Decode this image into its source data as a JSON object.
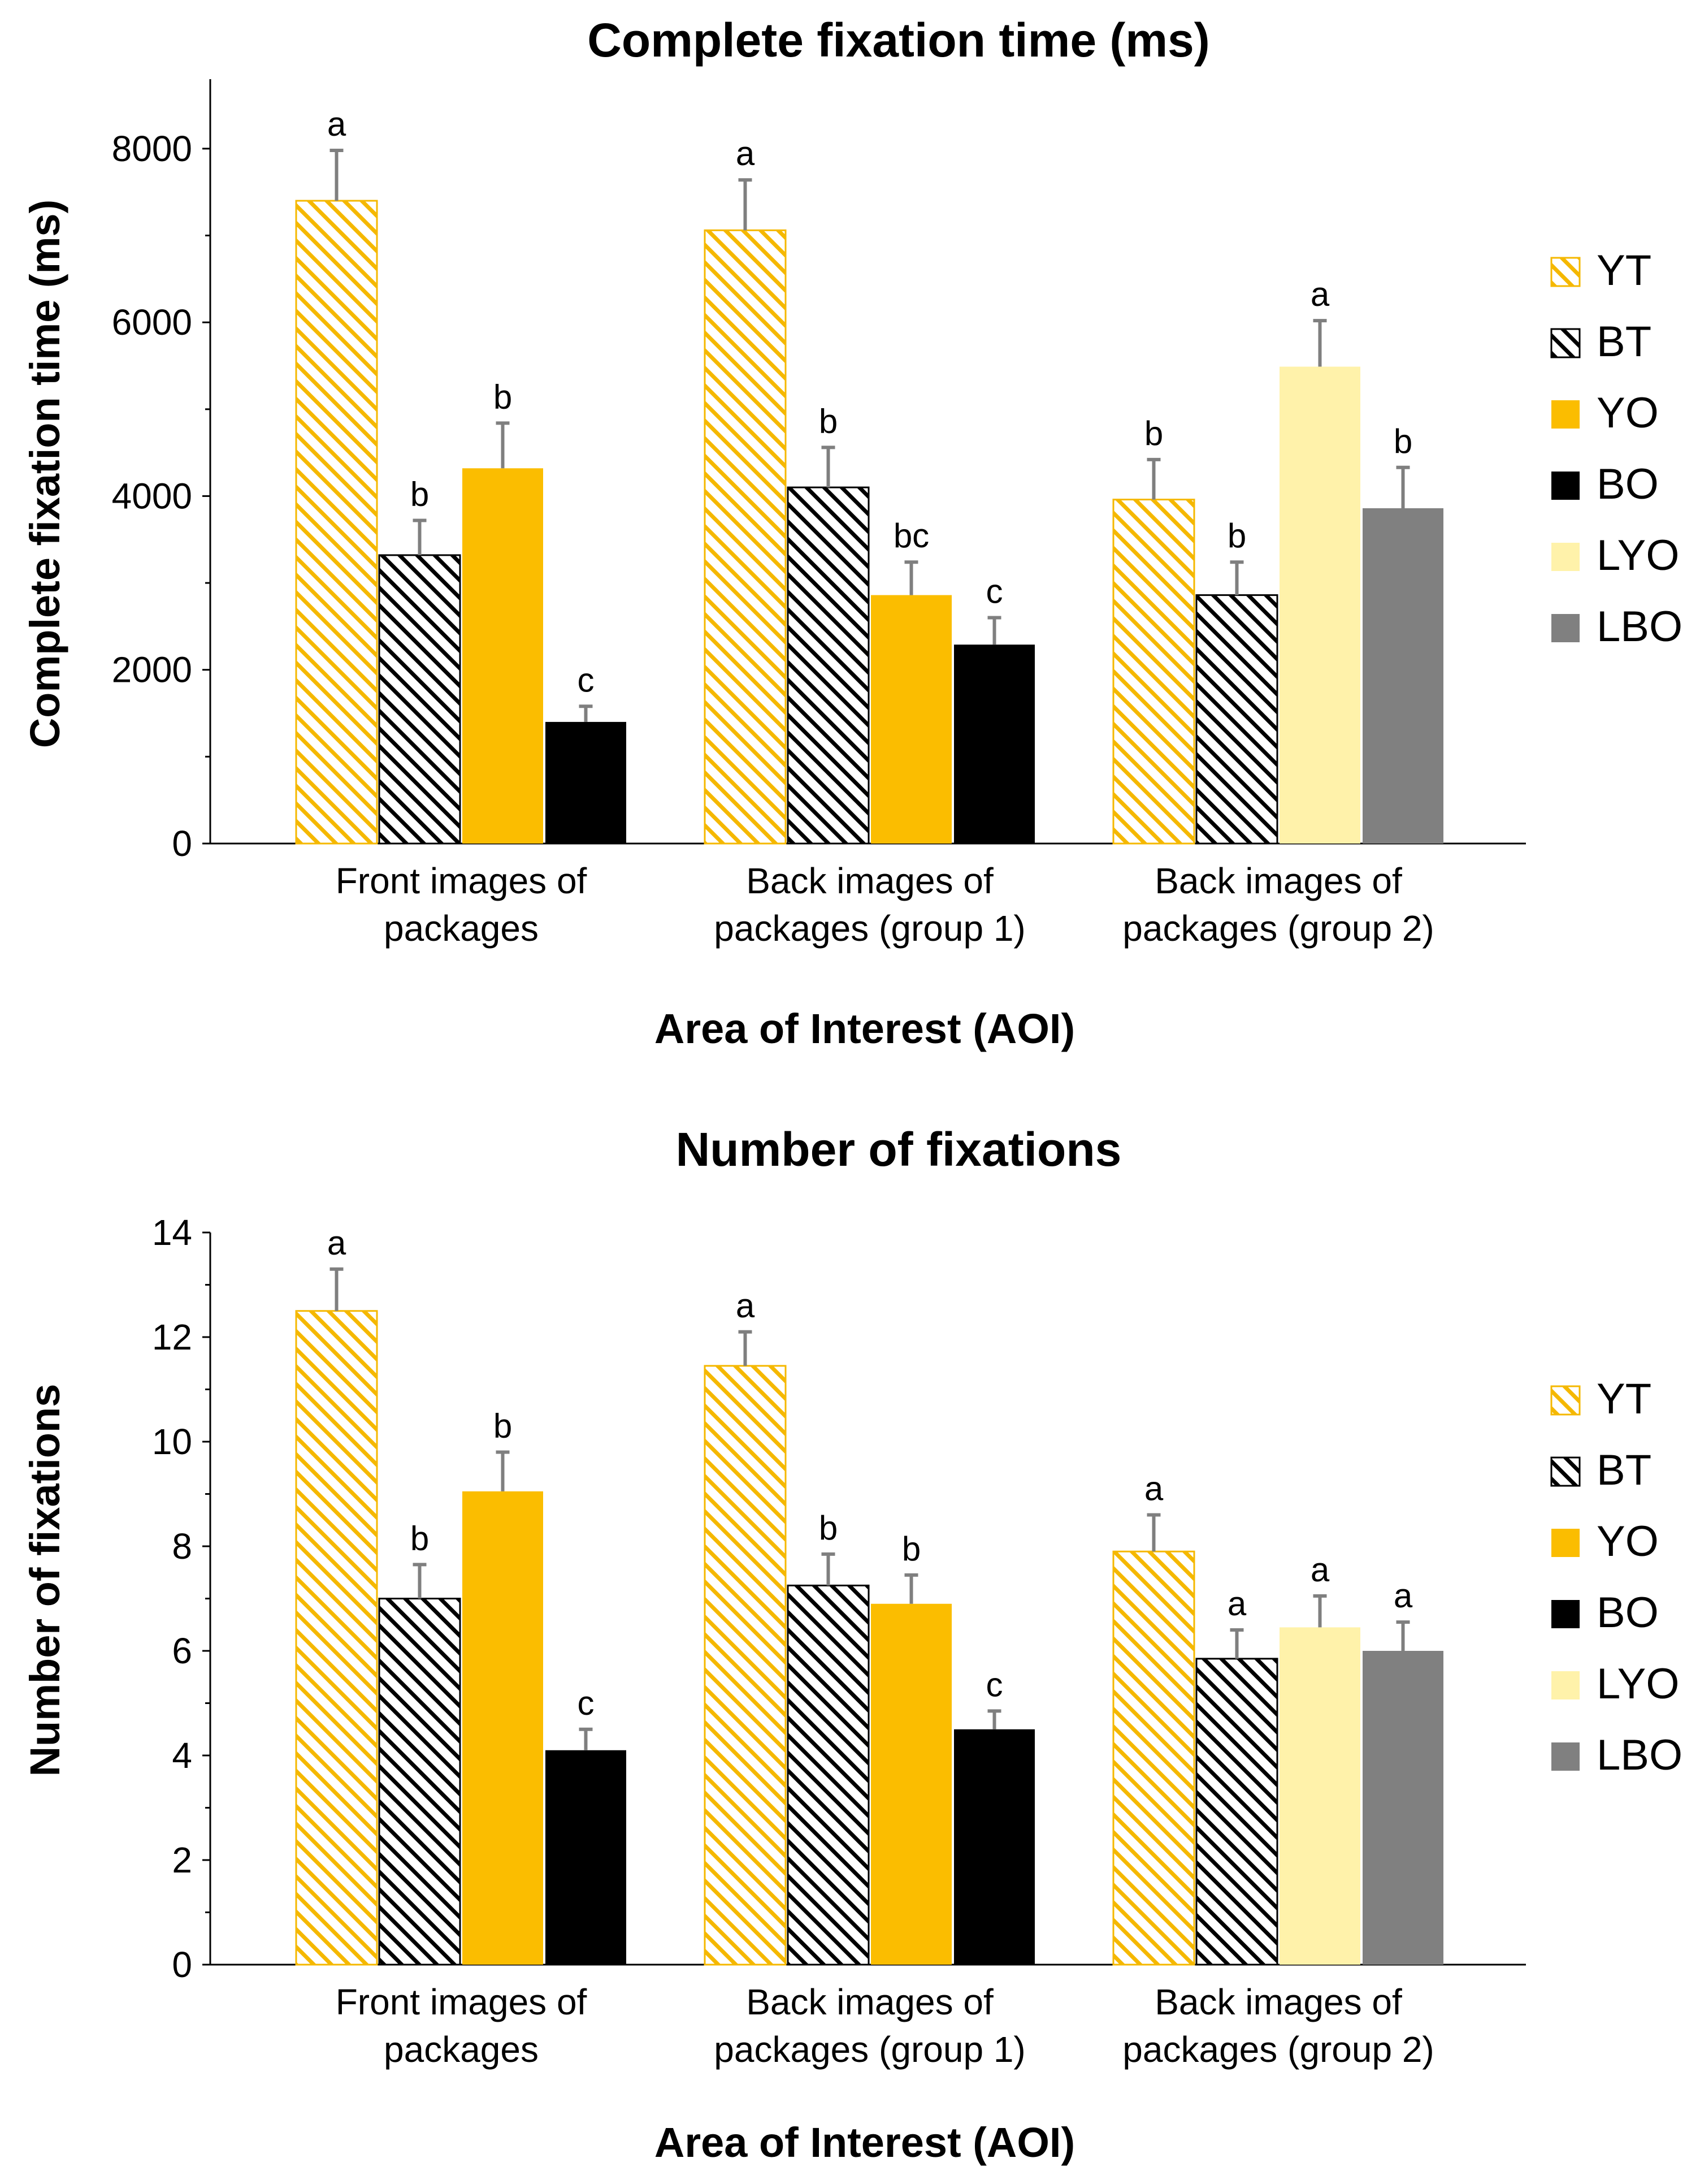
{
  "chart_data": [
    {
      "type": "bar",
      "title": "Complete fixation time (ms)",
      "xlabel": "Area of Interest (AOI)",
      "ylabel": "Complete fixation time (ms)",
      "ylim": [
        0,
        8800
      ],
      "yticks": [
        "0",
        "2000",
        "4000",
        "6000",
        "8000"
      ],
      "ytick_values": [
        0,
        2000,
        4000,
        6000,
        8000
      ],
      "categories": [
        [
          "Front images of",
          "packages"
        ],
        [
          "Back images of",
          "packages (group 1)"
        ],
        [
          "Back images of",
          "packages (group 2)"
        ]
      ],
      "groups": [
        {
          "bars": [
            {
              "series": "YT",
              "value": 7400,
              "error": 580,
              "letter": "a"
            },
            {
              "series": "BT",
              "value": 3320,
              "error": 400,
              "letter": "b"
            },
            {
              "series": "YO",
              "value": 4320,
              "error": 520,
              "letter": "b"
            },
            {
              "series": "BO",
              "value": 1400,
              "error": 180,
              "letter": "c"
            }
          ]
        },
        {
          "bars": [
            {
              "series": "YT",
              "value": 7060,
              "error": 580,
              "letter": "a"
            },
            {
              "series": "BT",
              "value": 4100,
              "error": 460,
              "letter": "b"
            },
            {
              "series": "YO",
              "value": 2860,
              "error": 380,
              "letter": "bc"
            },
            {
              "series": "BO",
              "value": 2290,
              "error": 310,
              "letter": "c"
            }
          ]
        },
        {
          "bars": [
            {
              "series": "YT",
              "value": 3960,
              "error": 460,
              "letter": "b"
            },
            {
              "series": "BT",
              "value": 2860,
              "error": 380,
              "letter": "b"
            },
            {
              "series": "LYO",
              "value": 5490,
              "error": 530,
              "letter": "a"
            },
            {
              "series": "LBO",
              "value": 3860,
              "error": 470,
              "letter": "b"
            }
          ]
        }
      ],
      "legend": [
        "YT",
        "BT",
        "YO",
        "BO",
        "LYO",
        "LBO"
      ]
    },
    {
      "type": "bar",
      "title": "Number of fixations",
      "xlabel": "Area of Interest (AOI)",
      "ylabel": "Number of fixations",
      "ylim": [
        0,
        14
      ],
      "yticks": [
        "0",
        "2",
        "4",
        "6",
        "8",
        "10",
        "12",
        "14"
      ],
      "ytick_values": [
        0,
        2,
        4,
        6,
        8,
        10,
        12,
        14
      ],
      "categories": [
        [
          "Front images of",
          "packages"
        ],
        [
          "Back images of",
          "packages (group 1)"
        ],
        [
          "Back images of",
          "packages (group 2)"
        ]
      ],
      "groups": [
        {
          "bars": [
            {
              "series": "YT",
              "value": 12.5,
              "error": 0.8,
              "letter": "a"
            },
            {
              "series": "BT",
              "value": 7.0,
              "error": 0.65,
              "letter": "b"
            },
            {
              "series": "YO",
              "value": 9.05,
              "error": 0.75,
              "letter": "b"
            },
            {
              "series": "BO",
              "value": 4.1,
              "error": 0.4,
              "letter": "c"
            }
          ]
        },
        {
          "bars": [
            {
              "series": "YT",
              "value": 11.45,
              "error": 0.65,
              "letter": "a"
            },
            {
              "series": "BT",
              "value": 7.25,
              "error": 0.6,
              "letter": "b"
            },
            {
              "series": "YO",
              "value": 6.9,
              "error": 0.55,
              "letter": "b"
            },
            {
              "series": "BO",
              "value": 4.5,
              "error": 0.35,
              "letter": "c"
            }
          ]
        },
        {
          "bars": [
            {
              "series": "YT",
              "value": 7.9,
              "error": 0.7,
              "letter": "a"
            },
            {
              "series": "BT",
              "value": 5.85,
              "error": 0.55,
              "letter": "a"
            },
            {
              "series": "LYO",
              "value": 6.45,
              "error": 0.6,
              "letter": "a"
            },
            {
              "series": "LBO",
              "value": 6.0,
              "error": 0.55,
              "letter": "a"
            }
          ]
        }
      ],
      "legend": [
        "YT",
        "BT",
        "YO",
        "BO",
        "LYO",
        "LBO"
      ]
    }
  ],
  "series_colors": {
    "YT": "#f5b800",
    "BT": "#000000",
    "YO": "#fbbd00",
    "BO": "#000000",
    "LYO": "#fff2aa",
    "LBO": "#808080"
  },
  "error_bar_color": "#7f7f7f"
}
